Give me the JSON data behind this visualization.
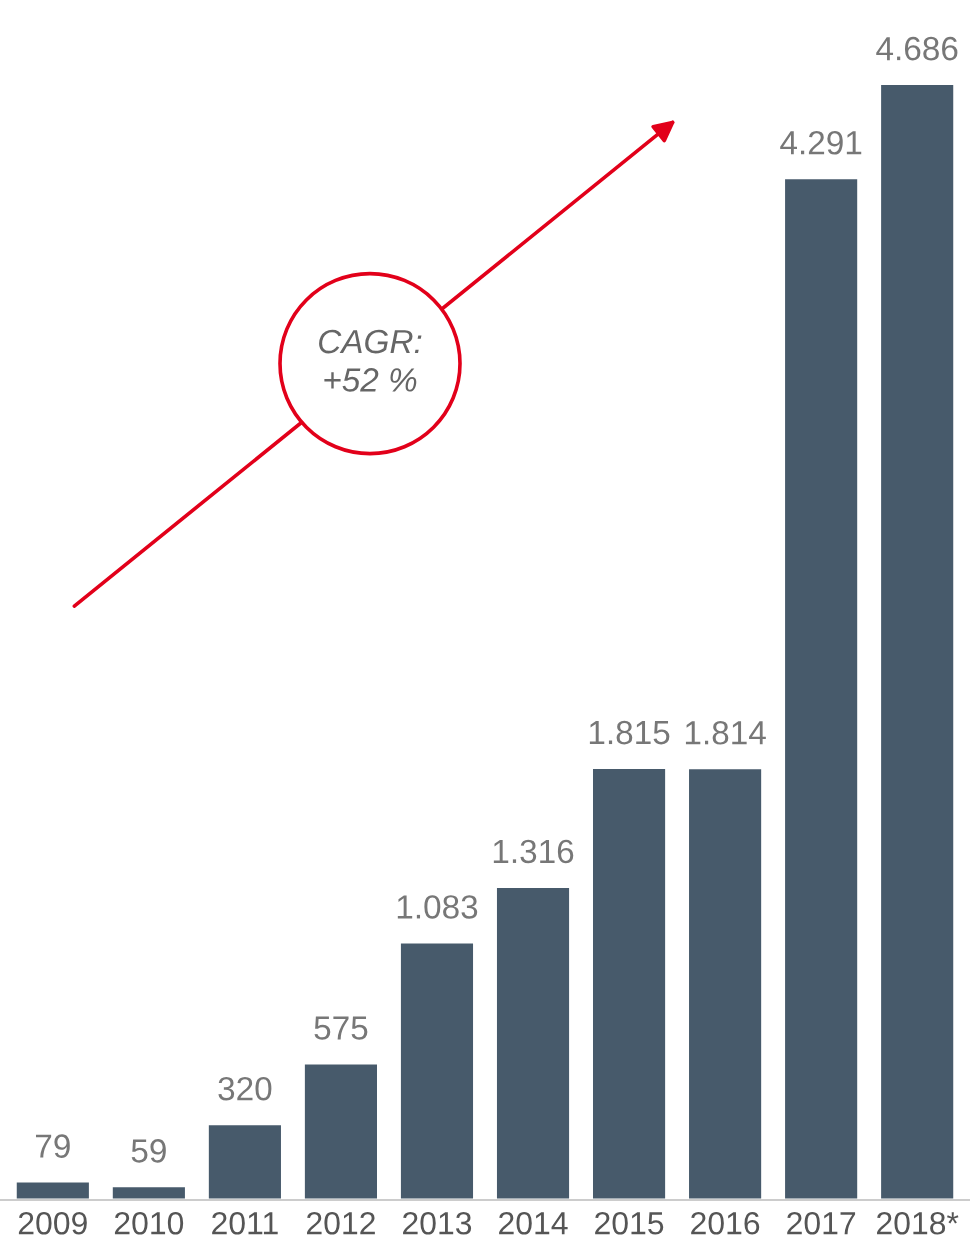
{
  "chart_data": {
    "type": "bar",
    "categories": [
      "2009",
      "2010",
      "2011",
      "2012",
      "2013",
      "2014",
      "2015",
      "2016",
      "2017",
      "2018*"
    ],
    "values": [
      79,
      59,
      320,
      575,
      1083,
      1316,
      1815,
      1814,
      4291,
      4686
    ],
    "value_labels": [
      "79",
      "59",
      "320",
      "575",
      "1.083",
      "1.316",
      "1.815",
      "1.814",
      "4.291",
      "4.686"
    ],
    "color": "#475a6b",
    "tick_labels": "x",
    "annotations": [
      "CAGR:\n+52 %"
    ],
    "grid": false,
    "legend": false
  }
}
